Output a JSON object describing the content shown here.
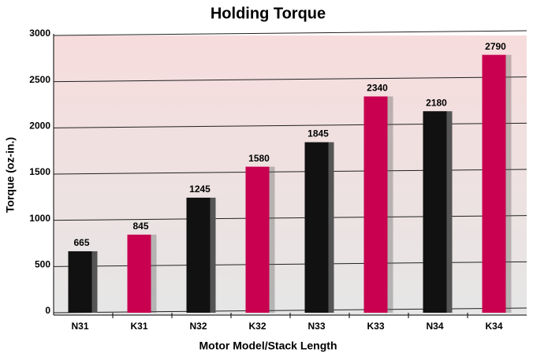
{
  "chart_data": {
    "type": "bar",
    "title": "Holding Torque",
    "x_label": "Motor Model/Stack Length",
    "y_label": "Torque (oz-in.)",
    "categories": [
      "N31",
      "K31",
      "N32",
      "K32",
      "N33",
      "K33",
      "N34",
      "K34"
    ],
    "values": [
      665,
      845,
      1245,
      1580,
      1845,
      2340,
      2180,
      2790
    ],
    "colors": [
      "#111111",
      "#c8004f",
      "#111111",
      "#c8004f",
      "#111111",
      "#c8004f",
      "#111111",
      "#c8004f"
    ],
    "ylim": [
      0,
      3000
    ],
    "yticks": [
      0,
      500,
      1000,
      1500,
      2000,
      2500,
      3000
    ],
    "grid": true
  }
}
